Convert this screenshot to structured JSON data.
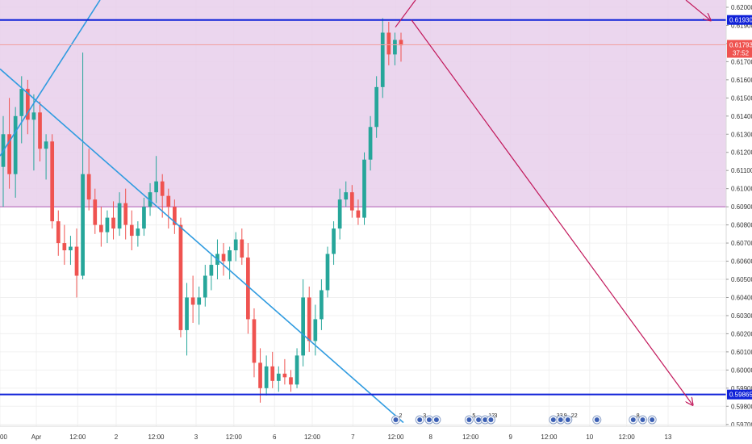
{
  "chart_data": {
    "type": "candlestick",
    "y_axis": {
      "ylim": [
        0.5969,
        0.6204
      ],
      "ticks": [
        "0.62000",
        "0.61900",
        "0.61800",
        "0.61700",
        "0.61600",
        "0.61500",
        "0.61400",
        "0.61300",
        "0.61200",
        "0.61100",
        "0.61000",
        "0.60900",
        "0.60800",
        "0.60700",
        "0.60600",
        "0.60500",
        "0.60400",
        "0.60300",
        "0.60200",
        "0.60100",
        "0.60000",
        "0.59900",
        "0.59800",
        "0.59700"
      ]
    },
    "x_axis": {
      "labels": [
        "00",
        "Apr",
        "12:00",
        "2",
        "12:00",
        "3",
        "12:00",
        "6",
        "12:00",
        "7",
        "12:00",
        "8",
        "12:00",
        "9",
        "12:00",
        "10",
        "12:00",
        "13"
      ]
    },
    "zone": {
      "from": 0.609,
      "to": 0.6204,
      "color": "#e8cfeb",
      "border": "#b05ab5"
    },
    "levels": [
      {
        "value": 0.6193,
        "label": "0.61930",
        "color": "#1022d8"
      },
      {
        "value": 0.59865,
        "label": "0.59865",
        "color": "#1022d8"
      }
    ],
    "current_price": {
      "value": 0.61793,
      "label": "0.61793",
      "countdown": "37:52",
      "color": "#ef5350"
    },
    "up_color": "#26a69a",
    "down_color": "#ef5350",
    "candles": [
      [
        0.6112,
        0.614,
        0.609,
        0.613
      ],
      [
        0.613,
        0.615,
        0.61,
        0.6108
      ],
      [
        0.6108,
        0.6145,
        0.6095,
        0.614
      ],
      [
        0.614,
        0.6162,
        0.6125,
        0.6155
      ],
      [
        0.6155,
        0.616,
        0.613,
        0.6138
      ],
      [
        0.6138,
        0.6152,
        0.611,
        0.6142
      ],
      [
        0.6142,
        0.6148,
        0.6115,
        0.6122
      ],
      [
        0.6122,
        0.613,
        0.6105,
        0.6126
      ],
      [
        0.6126,
        0.613,
        0.6078,
        0.6082
      ],
      [
        0.6082,
        0.6088,
        0.6063,
        0.607
      ],
      [
        0.607,
        0.608,
        0.6058,
        0.6066
      ],
      [
        0.6066,
        0.6074,
        0.6058,
        0.6068
      ],
      [
        0.6068,
        0.6078,
        0.604,
        0.6052
      ],
      [
        0.6052,
        0.6175,
        0.605,
        0.6108
      ],
      [
        0.6108,
        0.6122,
        0.6088,
        0.6094
      ],
      [
        0.6094,
        0.61,
        0.6075,
        0.608
      ],
      [
        0.608,
        0.609,
        0.6068,
        0.6076
      ],
      [
        0.6076,
        0.6088,
        0.607,
        0.6084
      ],
      [
        0.6084,
        0.6093,
        0.6072,
        0.6078
      ],
      [
        0.6078,
        0.6098,
        0.6074,
        0.6092
      ],
      [
        0.6092,
        0.61,
        0.6072,
        0.608
      ],
      [
        0.608,
        0.6088,
        0.6066,
        0.6074
      ],
      [
        0.6074,
        0.6082,
        0.6068,
        0.6078
      ],
      [
        0.6078,
        0.6095,
        0.6074,
        0.609
      ],
      [
        0.609,
        0.6103,
        0.6085,
        0.6098
      ],
      [
        0.6098,
        0.6118,
        0.6092,
        0.6104
      ],
      [
        0.6104,
        0.6108,
        0.6084,
        0.6096
      ],
      [
        0.6096,
        0.61,
        0.6078,
        0.609
      ],
      [
        0.609,
        0.6094,
        0.6075,
        0.608
      ],
      [
        0.608,
        0.6084,
        0.6018,
        0.6022
      ],
      [
        0.6022,
        0.6048,
        0.6008,
        0.604
      ],
      [
        0.604,
        0.6052,
        0.6026,
        0.6036
      ],
      [
        0.6036,
        0.6046,
        0.6025,
        0.604
      ],
      [
        0.604,
        0.6058,
        0.6035,
        0.6052
      ],
      [
        0.6052,
        0.6064,
        0.6044,
        0.6058
      ],
      [
        0.6058,
        0.6072,
        0.605,
        0.6064
      ],
      [
        0.6064,
        0.607,
        0.6052,
        0.606
      ],
      [
        0.606,
        0.6068,
        0.605,
        0.6066
      ],
      [
        0.6066,
        0.6076,
        0.606,
        0.6072
      ],
      [
        0.6072,
        0.6078,
        0.6058,
        0.6062
      ],
      [
        0.6062,
        0.607,
        0.602,
        0.6028
      ],
      [
        0.6028,
        0.6034,
        0.5996,
        0.6004
      ],
      [
        0.6004,
        0.6012,
        0.5982,
        0.599
      ],
      [
        0.599,
        0.6008,
        0.5986,
        0.6002
      ],
      [
        0.6002,
        0.601,
        0.599,
        0.5994
      ],
      [
        0.5994,
        0.6002,
        0.5988,
        0.5998
      ],
      [
        0.5998,
        0.6006,
        0.5992,
        0.5996
      ],
      [
        0.5996,
        0.6,
        0.5988,
        0.5992
      ],
      [
        0.5992,
        0.6012,
        0.599,
        0.6008
      ],
      [
        0.6008,
        0.605,
        0.6002,
        0.604
      ],
      [
        0.604,
        0.6046,
        0.601,
        0.6016
      ],
      [
        0.6016,
        0.6036,
        0.6008,
        0.6028
      ],
      [
        0.6028,
        0.605,
        0.6022,
        0.6044
      ],
      [
        0.6044,
        0.6068,
        0.604,
        0.6064
      ],
      [
        0.6064,
        0.6082,
        0.6058,
        0.6078
      ],
      [
        0.6078,
        0.61,
        0.6072,
        0.6094
      ],
      [
        0.6094,
        0.6104,
        0.609,
        0.6098
      ],
      [
        0.6098,
        0.6102,
        0.6084,
        0.6088
      ],
      [
        0.6088,
        0.6094,
        0.608,
        0.6084
      ],
      [
        0.6084,
        0.612,
        0.608,
        0.6116
      ],
      [
        0.6116,
        0.614,
        0.611,
        0.6134
      ],
      [
        0.6134,
        0.6162,
        0.6128,
        0.6156
      ],
      [
        0.6156,
        0.6194,
        0.615,
        0.6186
      ],
      [
        0.6186,
        0.6192,
        0.6168,
        0.6174
      ],
      [
        0.6174,
        0.6186,
        0.6168,
        0.6182
      ],
      [
        0.6182,
        0.6186,
        0.617,
        0.6179
      ]
    ],
    "events": [
      {
        "x": 0.545,
        "label": "2"
      },
      {
        "x": 0.578,
        "label": "3"
      },
      {
        "x": 0.591,
        "label": ""
      },
      {
        "x": 0.601,
        "label": ""
      },
      {
        "x": 0.646,
        "label": "5"
      },
      {
        "x": 0.659,
        "label": ""
      },
      {
        "x": 0.668,
        "label": "12"
      },
      {
        "x": 0.676,
        "label": "3"
      },
      {
        "x": 0.762,
        "label": "33"
      },
      {
        "x": 0.772,
        "label": "9"
      },
      {
        "x": 0.782,
        "label": "22"
      },
      {
        "x": 0.822,
        "label": ""
      },
      {
        "x": 0.872,
        "label": "8"
      },
      {
        "x": 0.885,
        "label": ""
      },
      {
        "x": 0.898,
        "label": ""
      }
    ]
  }
}
